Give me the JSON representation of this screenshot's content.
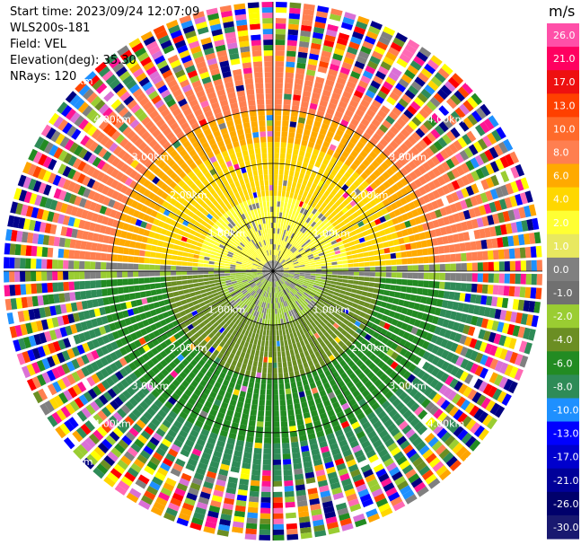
{
  "header": {
    "start_time": "Start time: 2023/09/24 12:07:09",
    "station": "WLS200s-181",
    "field": "Field: VEL",
    "elevation": "Elevation(deg): 35.30",
    "nrays": "NRays: 120"
  },
  "chart_data": {
    "type": "ppi",
    "field": "VEL",
    "n_rays": 120,
    "elevation_deg": 35.3,
    "range_rings_km": [
      1.0,
      2.0,
      3.0,
      4.0,
      5.0
    ],
    "ring_labels": [
      "1.00km",
      "2.00km",
      "3.00km",
      "4.00km",
      "5.00km"
    ],
    "colorbar": {
      "unit": "m/s",
      "ticks": [
        "26.0",
        "21.0",
        "17.0",
        "13.0",
        "10.0",
        "8.0",
        "6.0",
        "4.0",
        "2.0",
        "1.0",
        "0.0",
        "-1.0",
        "-2.0",
        "-4.0",
        "-6.0",
        "-8.0",
        "-10.0",
        "-13.0",
        "-17.0",
        "-21.0",
        "-26.0",
        "-30.0"
      ],
      "colors": [
        "#ff4fa8",
        "#ff0060",
        "#ee1010",
        "#ff4000",
        "#ff6a2a",
        "#ff7f50",
        "#ffaa00",
        "#ffd700",
        "#ffff33",
        "#e8e860",
        "#808080",
        "#707070",
        "#9acd32",
        "#6b8e23",
        "#228b22",
        "#2e8b57",
        "#1e90ff",
        "#0000ff",
        "#0000cd",
        "#000099",
        "#00006b",
        "#191970"
      ]
    }
  }
}
